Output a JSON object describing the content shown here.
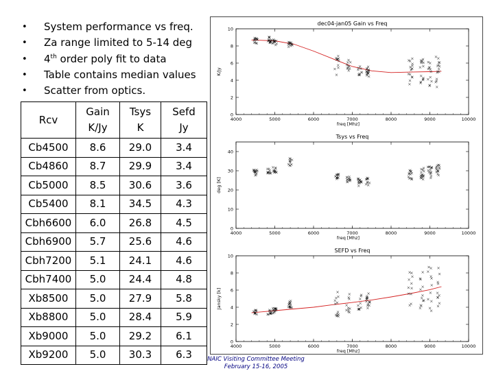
{
  "bullets": [
    {
      "text": "System performance vs freq."
    },
    {
      "text": "Za range limited to 5-14 deg"
    },
    {
      "pre": "4",
      "sup": "th",
      "post": " order poly fit to data"
    },
    {
      "text": "Table contains median values"
    },
    {
      "text": "Scatter from optics."
    }
  ],
  "bullet_symbol": "•",
  "table": {
    "headers": [
      {
        "lines": [
          "Rcv"
        ]
      },
      {
        "lines": [
          "Gain",
          "K/Jy"
        ]
      },
      {
        "lines": [
          "Tsys",
          "K"
        ]
      },
      {
        "lines": [
          "Sefd",
          "Jy"
        ]
      }
    ],
    "rows": [
      [
        "Cb4500",
        "8.6",
        "29.0",
        "3.4"
      ],
      [
        "Cb4860",
        "8.7",
        "29.9",
        "3.4"
      ],
      [
        "Cb5000",
        "8.5",
        "30.6",
        "3.6"
      ],
      [
        "Cb5400",
        "8.1",
        "34.5",
        "4.3"
      ],
      [
        "Cbh6600",
        "6.0",
        "26.8",
        "4.5"
      ],
      [
        "Cbh6900",
        "5.7",
        "25.6",
        "4.6"
      ],
      [
        "Cbh7200",
        "5.1",
        "24.1",
        "4.6"
      ],
      [
        "Cbh7400",
        "5.0",
        "24.4",
        "4.8"
      ],
      [
        "Xb8500",
        "5.0",
        "27.9",
        "5.8"
      ],
      [
        "Xb8800",
        "5.0",
        "28.4",
        "5.9"
      ],
      [
        "Xb9000",
        "5.0",
        "29.2",
        "6.1"
      ],
      [
        "Xb9200",
        "5.0",
        "30.3",
        "6.3"
      ]
    ]
  },
  "footer": {
    "line1": "NAIC Visiting Committee Meeting",
    "line2": "February 15-16, 2005"
  },
  "colors": {
    "fit_line": "#d42020",
    "markers": "#000000",
    "axes": "#000000",
    "footer": "#000080"
  },
  "chart_data": [
    {
      "type": "scatter",
      "title": "dec04-jan05 Gain vs Freq",
      "xlabel": "freq [Mhz]",
      "ylabel": "K/Jy",
      "xlim": [
        4000,
        10000
      ],
      "ylim": [
        0,
        10
      ],
      "xticks": [
        4000,
        5000,
        6000,
        7000,
        8000,
        9000,
        10000
      ],
      "yticks": [
        0,
        2,
        4,
        6,
        8,
        10
      ],
      "has_fit": true,
      "clusters": [
        {
          "x": 4500,
          "median": 8.6,
          "spread": 0.4
        },
        {
          "x": 4860,
          "median": 8.7,
          "spread": 0.4
        },
        {
          "x": 5000,
          "median": 8.5,
          "spread": 0.4
        },
        {
          "x": 5400,
          "median": 8.1,
          "spread": 0.4
        },
        {
          "x": 6600,
          "median": 6.0,
          "spread": 1.4
        },
        {
          "x": 6900,
          "median": 5.7,
          "spread": 1.0
        },
        {
          "x": 7200,
          "median": 5.1,
          "spread": 0.6
        },
        {
          "x": 7400,
          "median": 5.0,
          "spread": 0.6
        },
        {
          "x": 8500,
          "median": 5.0,
          "spread": 1.6
        },
        {
          "x": 8800,
          "median": 5.0,
          "spread": 1.6
        },
        {
          "x": 9000,
          "median": 5.0,
          "spread": 1.8
        },
        {
          "x": 9200,
          "median": 5.0,
          "spread": 1.8
        }
      ],
      "fit": [
        [
          4400,
          8.7
        ],
        [
          5000,
          8.6
        ],
        [
          5500,
          8.2
        ],
        [
          6000,
          7.4
        ],
        [
          6500,
          6.5
        ],
        [
          7000,
          5.6
        ],
        [
          7500,
          5.1
        ],
        [
          8000,
          4.9
        ],
        [
          8500,
          4.95
        ],
        [
          9000,
          5.0
        ],
        [
          9300,
          5.05
        ]
      ]
    },
    {
      "type": "scatter",
      "title": "Tsys vs Freq",
      "xlabel": "freq [Mhz]",
      "ylabel": "deg [K]",
      "xlim": [
        4000,
        10000
      ],
      "ylim": [
        0,
        45
      ],
      "xticks": [
        4000,
        5000,
        6000,
        7000,
        8000,
        9000,
        10000
      ],
      "yticks": [
        0,
        10,
        20,
        30,
        40
      ],
      "has_fit": false,
      "clusters": [
        {
          "x": 4500,
          "median": 29.0,
          "spread": 1.5
        },
        {
          "x": 4860,
          "median": 29.9,
          "spread": 1.5
        },
        {
          "x": 5000,
          "median": 30.6,
          "spread": 1.5
        },
        {
          "x": 5400,
          "median": 34.5,
          "spread": 2.0
        },
        {
          "x": 6600,
          "median": 26.8,
          "spread": 1.5
        },
        {
          "x": 6900,
          "median": 25.6,
          "spread": 1.5
        },
        {
          "x": 7200,
          "median": 24.1,
          "spread": 2.0
        },
        {
          "x": 7400,
          "median": 24.4,
          "spread": 2.0
        },
        {
          "x": 8500,
          "median": 27.9,
          "spread": 3.0
        },
        {
          "x": 8800,
          "median": 28.4,
          "spread": 3.0
        },
        {
          "x": 9000,
          "median": 29.2,
          "spread": 3.0
        },
        {
          "x": 9200,
          "median": 30.3,
          "spread": 3.0
        }
      ]
    },
    {
      "type": "scatter",
      "title": "SEFD vs Freq",
      "xlabel": "freq [Mhz]",
      "ylabel": "Jansky [k]",
      "xlim": [
        4000,
        10000
      ],
      "ylim": [
        0,
        10
      ],
      "xticks": [
        4000,
        5000,
        6000,
        7000,
        8000,
        9000,
        10000
      ],
      "yticks": [
        0,
        2,
        4,
        6,
        8,
        10
      ],
      "has_fit": true,
      "clusters": [
        {
          "x": 4500,
          "median": 3.4,
          "spread": 0.3
        },
        {
          "x": 4860,
          "median": 3.4,
          "spread": 0.3
        },
        {
          "x": 5000,
          "median": 3.6,
          "spread": 0.3
        },
        {
          "x": 5400,
          "median": 4.3,
          "spread": 0.5
        },
        {
          "x": 6600,
          "median": 4.5,
          "spread": 1.6
        },
        {
          "x": 6900,
          "median": 4.6,
          "spread": 1.2
        },
        {
          "x": 7200,
          "median": 4.6,
          "spread": 1.0
        },
        {
          "x": 7400,
          "median": 4.8,
          "spread": 1.0
        },
        {
          "x": 8500,
          "median": 5.8,
          "spread": 2.6
        },
        {
          "x": 8800,
          "median": 5.9,
          "spread": 2.6
        },
        {
          "x": 9000,
          "median": 6.1,
          "spread": 2.6
        },
        {
          "x": 9200,
          "median": 6.3,
          "spread": 2.6
        }
      ],
      "fit": [
        [
          4400,
          3.35
        ],
        [
          5000,
          3.6
        ],
        [
          5500,
          3.8
        ],
        [
          6000,
          4.0
        ],
        [
          6500,
          4.3
        ],
        [
          7000,
          4.55
        ],
        [
          7500,
          4.85
        ],
        [
          8000,
          5.2
        ],
        [
          8500,
          5.6
        ],
        [
          9000,
          6.05
        ],
        [
          9300,
          6.4
        ]
      ]
    }
  ]
}
